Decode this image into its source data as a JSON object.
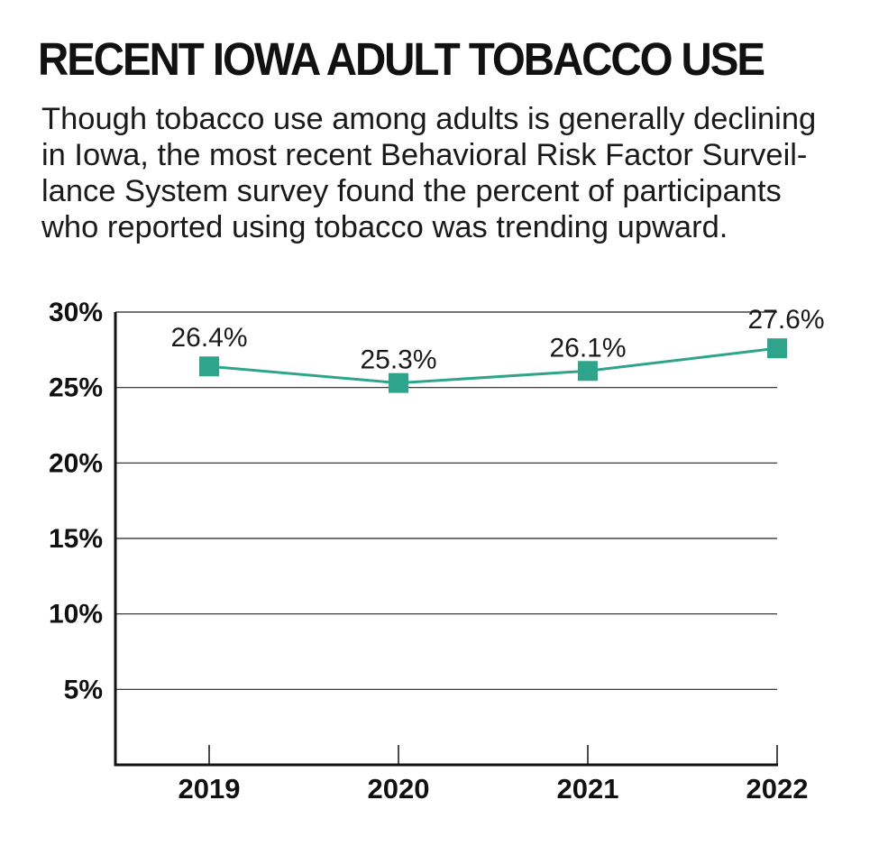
{
  "title": "RECENT IOWA ADULT TOBACCO USE",
  "subtitle_lines": [
    "Though tobacco use among adults is generally declining",
    "in Iowa, the most recent Behavioral Risk Factor Surveil-",
    "lance System survey found the percent of participants",
    "who reported using tobacco was trending upward."
  ],
  "chart_data": {
    "type": "line",
    "x": [
      "2019",
      "2020",
      "2021",
      "2022"
    ],
    "series": [
      {
        "values": [
          26.4,
          25.3,
          26.1,
          27.6
        ],
        "labels": [
          "26.4%",
          "25.3%",
          "26.1%",
          "27.6%"
        ]
      }
    ],
    "ylim": [
      0,
      30
    ],
    "yticks": [
      5,
      10,
      15,
      20,
      25,
      30
    ],
    "ytick_labels": [
      "5%",
      "10%",
      "15%",
      "20%",
      "25%",
      "30%"
    ],
    "grid": true,
    "colors": {
      "series": "#2ea58b",
      "axis": "#111111",
      "grid": "#222222"
    }
  }
}
